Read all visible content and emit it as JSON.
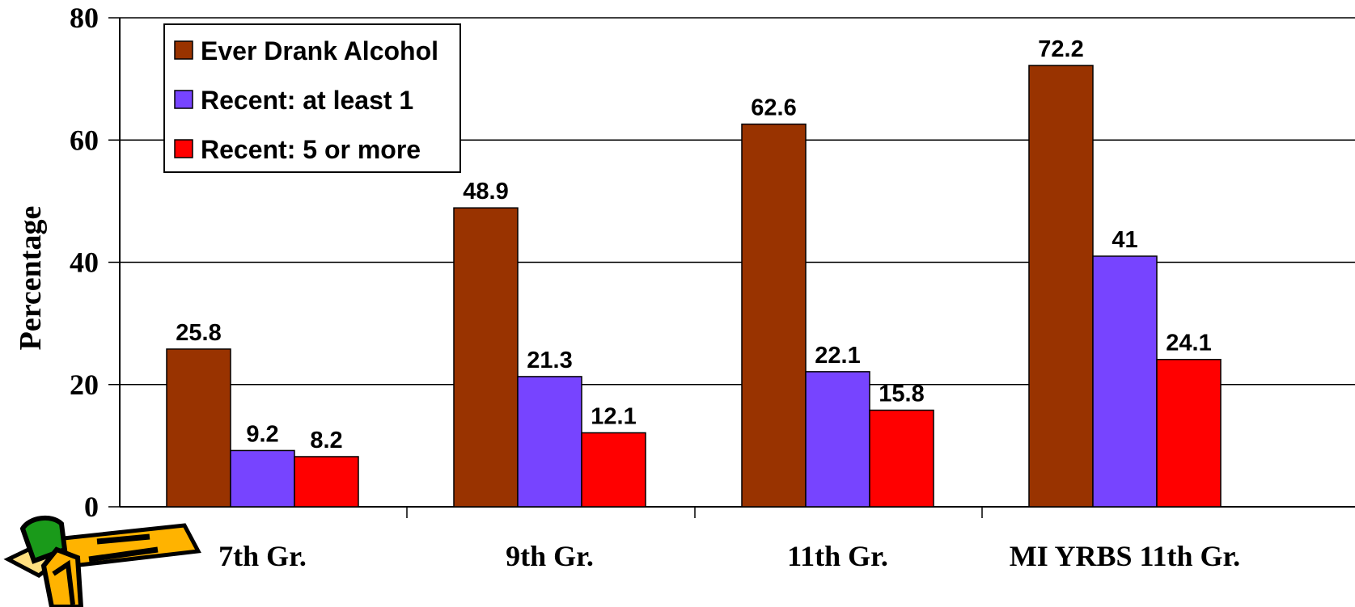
{
  "chart_data": {
    "type": "bar",
    "ylabel": "Percentage",
    "xlabel": "",
    "ylim": [
      0,
      80
    ],
    "yticks": [
      "0",
      "20",
      "40",
      "60",
      "80"
    ],
    "grid": true,
    "legend_position": "top-left",
    "categories": [
      "7th Gr.",
      "9th Gr.",
      "11th Gr.",
      "MI YRBS 11th Gr."
    ],
    "series": [
      {
        "name": "Ever Drank Alcohol",
        "color": "#993300",
        "values": [
          25.8,
          48.9,
          62.6,
          72.2
        ],
        "labels": [
          "25.8",
          "48.9",
          "62.6",
          "72.2"
        ]
      },
      {
        "name": "Recent: at least 1",
        "color": "#7744ff",
        "values": [
          9.2,
          21.3,
          22.1,
          41
        ],
        "labels": [
          "9.2",
          "21.3",
          "22.1",
          "41"
        ]
      },
      {
        "name": "Recent: 5 or more",
        "color": "#ff0000",
        "values": [
          8.2,
          12.1,
          15.8,
          24.1
        ],
        "labels": [
          "8.2",
          "12.1",
          "15.8",
          "24.1"
        ]
      }
    ]
  },
  "clipart": {
    "icon": "pencil-icon"
  }
}
